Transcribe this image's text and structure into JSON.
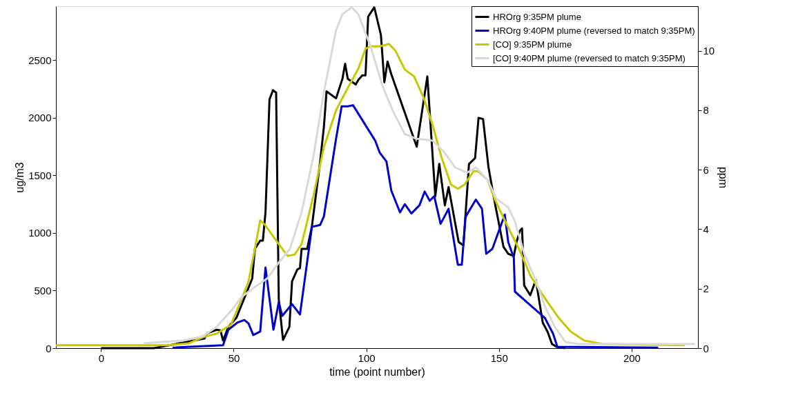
{
  "chart_data": {
    "type": "line",
    "xlabel": "time (point number)",
    "ylabel": "ug/m3",
    "y2label": "ppm",
    "xlim": [
      -17,
      225
    ],
    "xticks": [
      0,
      50,
      100,
      150,
      200
    ],
    "ylim": [
      0,
      2970
    ],
    "yticks": [
      0,
      500,
      1000,
      1500,
      2000,
      2500
    ],
    "y2lim": [
      0,
      11.5
    ],
    "y2ticks": [
      0,
      2,
      4,
      6,
      8,
      10
    ],
    "grid": false,
    "legend": "top right",
    "marker": "none",
    "line_style": "solid",
    "series": [
      {
        "name": "HROrg 9:35PM plume",
        "color": "#000000",
        "x": [
          0,
          20,
          39,
          40,
          43.6,
          45,
          46,
          48,
          51,
          57,
          58,
          60,
          61,
          62,
          63.5,
          64.8,
          66,
          67,
          68.6,
          71,
          72,
          74,
          75,
          75.6,
          77.7,
          79.5,
          82.6,
          84,
          85,
          88.6,
          91,
          92,
          93,
          96,
          97,
          98.5,
          99.7,
          100.7,
          103,
          105.5,
          106.8,
          108,
          109.4,
          119,
          123,
          126,
          127.5,
          129.6,
          131,
          134.8,
          136.6,
          138.7,
          141,
          142.3,
          144,
          146,
          147.5,
          148.8,
          151.7,
          153.5,
          155.6,
          156.6,
          157.9,
          158.7,
          159.5,
          161.8,
          163.9,
          166.5,
          168.3,
          170,
          171.7,
          175
        ],
        "values": [
          0,
          0,
          84,
          130,
          160,
          155,
          66,
          185,
          263,
          605,
          862,
          934,
          934,
          1180,
          2160,
          2240,
          2220,
          425,
          72,
          185,
          580,
          683,
          695,
          862,
          862,
          1060,
          1620,
          1920,
          2230,
          2170,
          2340,
          2470,
          2340,
          2290,
          2330,
          2370,
          2370,
          2880,
          2960,
          2720,
          2310,
          2490,
          2380,
          1750,
          2360,
          1320,
          1600,
          1240,
          1400,
          922,
          892,
          1600,
          1650,
          2000,
          1990,
          1580,
          1380,
          1220,
          880,
          820,
          800,
          920,
          1020,
          1040,
          545,
          460,
          593,
          222,
          144,
          36,
          12,
          0
        ]
      },
      {
        "name": "HROrg 9:40PM plume (reversed to match 9:35PM)",
        "color": "#0000cc",
        "x": [
          27,
          46,
          48,
          51.4,
          54,
          55.6,
          57.4,
          60,
          62,
          65,
          67,
          68.3,
          72,
          75,
          79.5,
          82.6,
          84,
          88.6,
          90.7,
          93,
          95,
          103.4,
          105,
          107.6,
          109.4,
          112.7,
          114.5,
          117,
          120,
          122,
          123.9,
          125.6,
          128,
          131,
          134.5,
          136,
          137.4,
          141.3,
          143.6,
          145.2,
          147.5,
          152.2,
          153.5,
          155.6,
          156,
          167.3,
          170.4,
          172,
          210
        ],
        "values": [
          5,
          25,
          160,
          222,
          245,
          215,
          114,
          144,
          700,
          160,
          400,
          280,
          383,
          293,
          1053,
          1070,
          1144,
          1820,
          2100,
          2100,
          2110,
          1800,
          1700,
          1620,
          1370,
          1180,
          1250,
          1170,
          1240,
          1360,
          1280,
          1320,
          1080,
          1210,
          725,
          725,
          1140,
          1290,
          1210,
          820,
          862,
          1160,
          920,
          784,
          491,
          263,
          126,
          12,
          5
        ]
      },
      {
        "name": "[CO] 9:35PM plume",
        "color": "#c8c800",
        "axis": "y2",
        "x": [
          -17,
          25,
          33,
          38.4,
          43.6,
          49,
          53,
          55.6,
          58,
          60,
          61.8,
          67,
          70.4,
          73,
          75.6,
          80,
          84,
          88.6,
          93,
          97,
          99.7,
          101.6,
          105,
          108.6,
          111,
          114.5,
          118,
          121.5,
          125,
          128.3,
          131.9,
          134.5,
          137,
          140.5,
          142.3,
          145.7,
          148.3,
          152.7,
          157.9,
          162,
          166.5,
          168.3,
          172.5,
          177,
          182,
          189,
          220
        ],
        "values": [
          0.1,
          0.1,
          0.16,
          0.37,
          0.49,
          0.79,
          1.65,
          2.25,
          3.34,
          4.3,
          4.15,
          3.5,
          3.1,
          3.15,
          3.5,
          5.1,
          6.75,
          8.0,
          8.75,
          9.4,
          10.07,
          10.15,
          10.15,
          10.23,
          10.0,
          9.37,
          9.14,
          8.45,
          7.5,
          6.43,
          5.5,
          5.36,
          5.5,
          5.96,
          5.94,
          5.66,
          5.03,
          4.2,
          3.27,
          2.41,
          1.79,
          1.55,
          1.02,
          0.56,
          0.26,
          0.14,
          0.1
        ]
      },
      {
        "name": "[CO] 9:40PM plume (reversed to match 9:35PM)",
        "color": "#d9d9d9",
        "axis": "y2",
        "x": [
          16,
          31.4,
          38.4,
          43.6,
          49,
          53,
          57.4,
          62.6,
          67,
          71.2,
          75.6,
          80,
          84,
          88.6,
          91,
          94.5,
          97,
          101.6,
          106,
          110,
          114.5,
          118.6,
          125,
          129.4,
          133.5,
          138,
          141.3,
          145.7,
          149,
          153.5,
          156,
          159.5,
          164,
          167.3,
          171,
          175,
          180,
          224
        ],
        "values": [
          0.16,
          0.26,
          0.4,
          0.72,
          1.25,
          1.72,
          2.02,
          2.34,
          2.88,
          3.34,
          4.57,
          6.43,
          8.6,
          10.7,
          11.23,
          11.46,
          11.23,
          10.15,
          8.84,
          7.98,
          7.2,
          7.05,
          6.98,
          6.59,
          6.08,
          5.9,
          6.08,
          5.66,
          5.03,
          4.73,
          4.27,
          3.18,
          2.25,
          1.41,
          0.72,
          0.21,
          0.14,
          0.14
        ]
      }
    ]
  }
}
